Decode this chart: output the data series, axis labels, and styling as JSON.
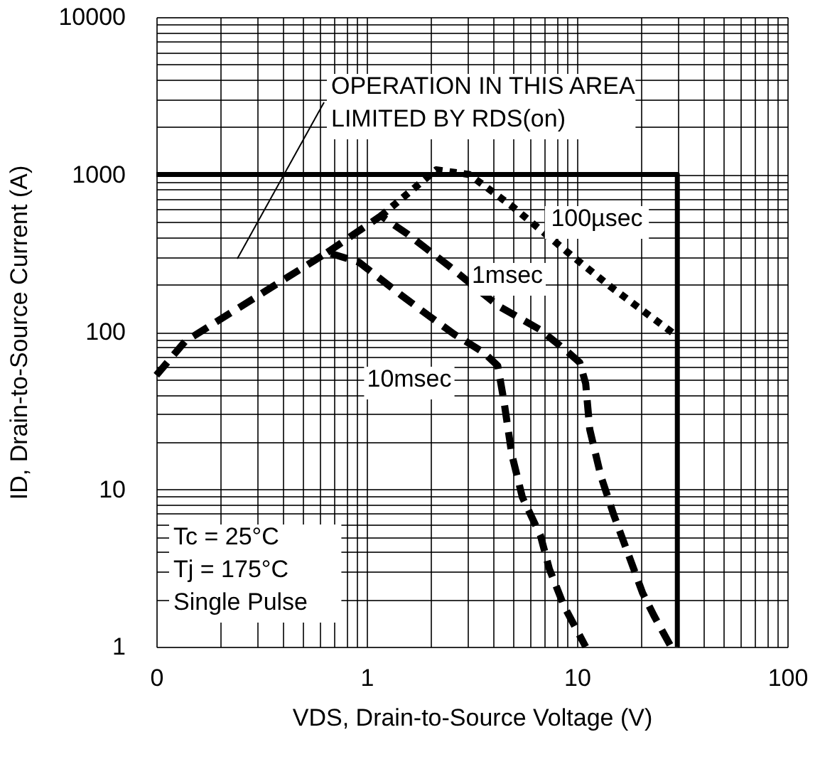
{
  "chart_data": {
    "type": "line",
    "xlabel": "VDS, Drain-to-Source Voltage (V)",
    "ylabel": "ID, Drain-to-Source Current (A)",
    "log": "xy",
    "grid": true,
    "line_style": "dashed",
    "marker": "none",
    "xlim": [
      0.1,
      100
    ],
    "ylim": [
      1,
      10000
    ],
    "xticks": [
      {
        "value": 0.1,
        "label": "0"
      },
      {
        "value": 0.2,
        "label": null
      },
      {
        "value": 0.3,
        "label": null
      },
      {
        "value": 0.4,
        "label": null
      },
      {
        "value": 0.5,
        "label": null
      },
      {
        "value": 0.6,
        "label": null
      },
      {
        "value": 0.7,
        "label": null
      },
      {
        "value": 0.8,
        "label": null
      },
      {
        "value": 0.9,
        "label": null
      },
      1,
      {
        "value": 2,
        "label": null
      },
      {
        "value": 3,
        "label": null
      },
      {
        "value": 4,
        "label": null
      },
      {
        "value": 5,
        "label": null
      },
      {
        "value": 6,
        "label": null
      },
      {
        "value": 7,
        "label": null
      },
      {
        "value": 8,
        "label": null
      },
      {
        "value": 9,
        "label": null
      },
      10,
      {
        "value": 20,
        "label": null
      },
      {
        "value": 30,
        "label": null
      },
      {
        "value": 40,
        "label": null
      },
      {
        "value": 50,
        "label": null
      },
      {
        "value": 60,
        "label": null
      },
      {
        "value": 70,
        "label": null
      },
      {
        "value": 80,
        "label": null
      },
      {
        "value": 90,
        "label": null
      },
      100
    ],
    "yticks": [
      1,
      {
        "value": 2,
        "label": null
      },
      {
        "value": 3,
        "label": null
      },
      {
        "value": 4,
        "label": null
      },
      {
        "value": 5,
        "label": null
      },
      {
        "value": 6,
        "label": null
      },
      {
        "value": 7,
        "label": null
      },
      {
        "value": 8,
        "label": null
      },
      {
        "value": 9,
        "label": null
      },
      10,
      {
        "value": 20,
        "label": null
      },
      {
        "value": 30,
        "label": null
      },
      {
        "value": 40,
        "label": null
      },
      {
        "value": 50,
        "label": null
      },
      {
        "value": 60,
        "label": null
      },
      {
        "value": 70,
        "label": null
      },
      {
        "value": 80,
        "label": null
      },
      {
        "value": 90,
        "label": null
      },
      100,
      {
        "value": 200,
        "label": null
      },
      {
        "value": 300,
        "label": null
      },
      {
        "value": 400,
        "label": null
      },
      {
        "value": 500,
        "label": null
      },
      {
        "value": 600,
        "label": null
      },
      {
        "value": 700,
        "label": null
      },
      {
        "value": 800,
        "label": null
      },
      {
        "value": 900,
        "label": null
      },
      1000,
      {
        "value": 2000,
        "label": null
      },
      {
        "value": 3000,
        "label": null
      },
      {
        "value": 4000,
        "label": null
      },
      {
        "value": 5000,
        "label": null
      },
      {
        "value": 6000,
        "label": null
      },
      {
        "value": 7000,
        "label": null
      },
      {
        "value": 8000,
        "label": null
      },
      {
        "value": 9000,
        "label": null
      },
      10000
    ],
    "series": [
      {
        "color": "#000000",
        "line_style": "solid",
        "x": [
          0.1,
          30,
          30
        ],
        "values": [
          1000,
          1000,
          1
        ]
      },
      {
        "color": "#000000",
        "x": [
          0.1,
          0.137,
          0.65,
          0.92,
          1.47,
          2.0,
          2.6,
          3.6,
          4.2,
          4.5,
          4.9,
          5.5,
          6.7,
          7.4,
          8.7,
          10.3,
          11
        ],
        "values": [
          53,
          87,
          320,
          277,
          170,
          125,
          97,
          74,
          61,
          36,
          16.6,
          8.9,
          5.1,
          3.1,
          1.8,
          1.18,
          1
        ]
      },
      {
        "color": "#000000",
        "x": [
          0.65,
          1.17,
          1.57,
          2.5,
          4.2,
          6.7,
          9.1,
          10.3,
          11,
          11.5,
          13,
          15,
          17.5,
          20.5,
          23.2,
          28
        ],
        "values": [
          320,
          546,
          417,
          258,
          147,
          103,
          74,
          64,
          47,
          24,
          12.1,
          6.8,
          3.9,
          2.2,
          1.58,
          1
        ]
      },
      {
        "color": "#000000",
        "line_style": "dotted",
        "x": [
          1.17,
          2.14,
          3.07,
          4.9,
          9.5,
          14.5,
          29
        ],
        "values": [
          546,
          1070,
          1000,
          630,
          303,
          193,
          97
        ]
      }
    ],
    "annotations": [
      "OPERATION IN THIS AREA\nLIMITED BY RDS(on)",
      "100µsec",
      "1msec",
      "10msec",
      "Tc = 25°C\nTj = 175°C\nSingle Pulse"
    ]
  }
}
